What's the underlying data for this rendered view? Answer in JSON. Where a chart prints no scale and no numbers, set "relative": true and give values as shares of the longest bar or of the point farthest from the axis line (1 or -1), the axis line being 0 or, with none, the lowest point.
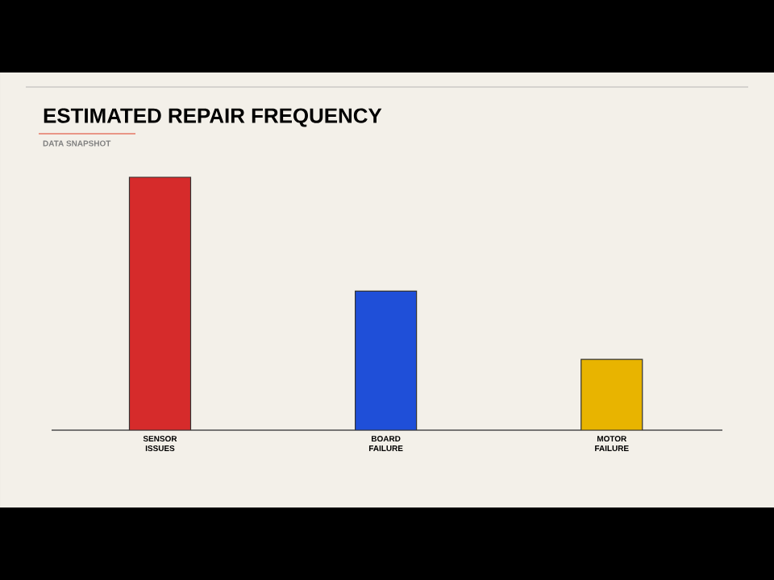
{
  "chart_data": {
    "type": "bar",
    "title": "ESTIMATED REPAIR FREQUENCY",
    "subtitle": "DATA SNAPSHOT",
    "categories": [
      "SENSOR ISSUES",
      "BOARD FAILURE",
      "MOTOR FAILURE"
    ],
    "values": [
      1,
      0.55,
      0.28
    ],
    "colors": [
      "#d62b2b",
      "#1f4fd8",
      "#e8b400"
    ],
    "relative": true
  }
}
